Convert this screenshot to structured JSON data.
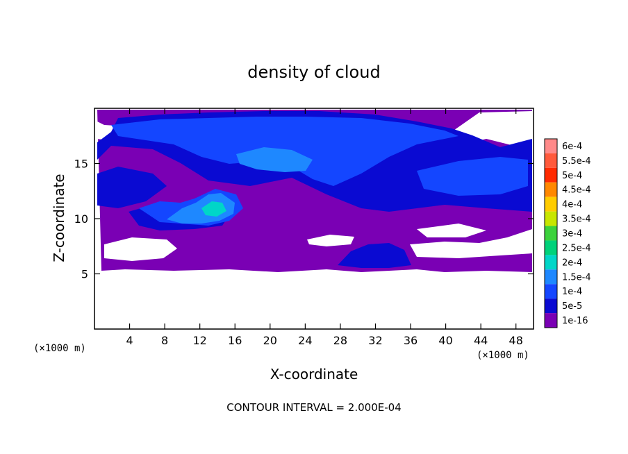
{
  "chart_data": {
    "type": "heatmap",
    "title": "density of cloud",
    "xlabel": "X-coordinate",
    "ylabel": "Z-coordinate",
    "x_unit": "(×1000 m)",
    "xlim": [
      0,
      50
    ],
    "ylim": [
      0,
      20
    ],
    "x_ticks": [
      4,
      8,
      12,
      16,
      20,
      24,
      28,
      32,
      36,
      40,
      44,
      48
    ],
    "y_ticks": [
      5,
      10,
      15
    ],
    "footer": "CONTOUR INTERVAL = 2.000E-04",
    "colorbar": {
      "levels": [
        "6e-4",
        "5.5e-4",
        "5e-4",
        "4.5e-4",
        "4e-4",
        "3.5e-4",
        "3e-4",
        "2.5e-4",
        "2e-4",
        "1.5e-4",
        "1e-4",
        "5e-5",
        "1e-16"
      ],
      "colors": [
        "#ff8a8a",
        "#ff5a3c",
        "#ff2a00",
        "#ff8800",
        "#ffcc00",
        "#c8e600",
        "#3cd23c",
        "#00d27a",
        "#00d6c8",
        "#1e88ff",
        "#1446ff",
        "#0a0ad2",
        "#7a00b4"
      ]
    },
    "description_regions": [
      {
        "level": "1e-16",
        "x_range": [
          0,
          50
        ],
        "z_range": [
          5.5,
          19.5
        ]
      },
      {
        "level": "5e-5",
        "x_range": [
          0,
          50
        ],
        "z_range": [
          10,
          19.5
        ]
      },
      {
        "level": "1e-4",
        "x_range": [
          2,
          46
        ],
        "z_range": [
          11,
          19
        ]
      },
      {
        "level": "1.5e-4",
        "x_range": [
          8,
          17
        ],
        "z_range": [
          9,
          12
        ]
      },
      {
        "level": "5e-5",
        "x_range": [
          29,
          35
        ],
        "z_range": [
          6,
          7.5
        ]
      }
    ]
  }
}
